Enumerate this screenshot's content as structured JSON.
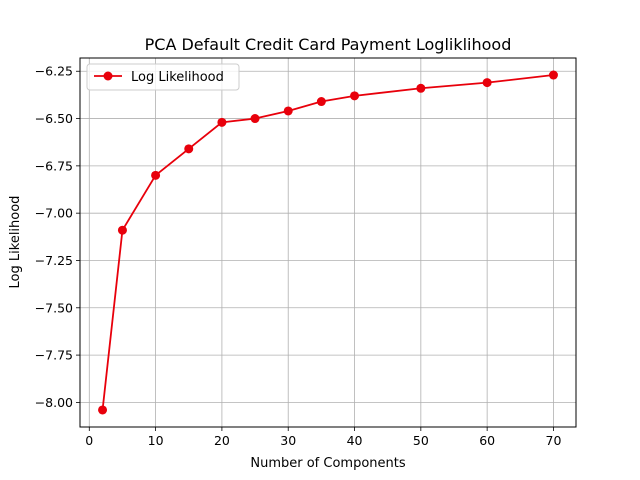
{
  "chart_data": {
    "type": "line",
    "title": "PCA Default Credit Card Payment Logliklihood",
    "xlabel": "Number of Components",
    "ylabel": "Log Likelihood",
    "xlim": [
      -1.4,
      73.4
    ],
    "ylim": [
      -8.13,
      -6.18
    ],
    "xticks": [
      0,
      10,
      20,
      30,
      40,
      50,
      60,
      70
    ],
    "xtick_labels": [
      "0",
      "10",
      "20",
      "30",
      "40",
      "50",
      "60",
      "70"
    ],
    "yticks": [
      -6.25,
      -6.5,
      -6.75,
      -7.0,
      -7.25,
      -7.5,
      -7.75,
      -8.0
    ],
    "ytick_labels": [
      "−6.25",
      "−6.50",
      "−6.75",
      "−7.00",
      "−7.25",
      "−7.50",
      "−7.75",
      "−8.00"
    ],
    "grid": true,
    "legend_position": "top-left",
    "series": [
      {
        "name": "Log Likelihood",
        "color": "#e8000b",
        "marker": "circle",
        "x": [
          2,
          5,
          10,
          15,
          20,
          25,
          30,
          35,
          40,
          50,
          60,
          70
        ],
        "y": [
          -8.04,
          -7.09,
          -6.8,
          -6.66,
          -6.52,
          -6.5,
          -6.46,
          -6.41,
          -6.38,
          -6.34,
          -6.31,
          -6.27
        ]
      }
    ]
  }
}
